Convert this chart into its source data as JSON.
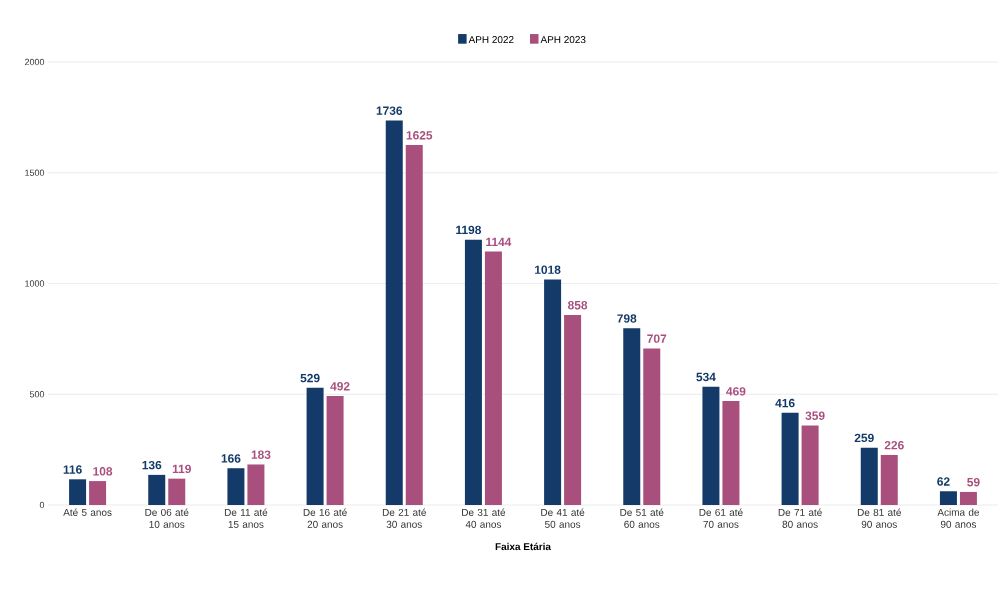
{
  "chart_data": {
    "type": "bar",
    "xlabel": "Faixa Etária",
    "categories": [
      "Até 5 anos",
      "De 06 até 10 anos",
      "De 11 até 15 anos",
      "De 16 até 20 anos",
      "De 21 até 30 anos",
      "De 31 até 40 anos",
      "De 41 até 50 anos",
      "De 51 até 60 anos",
      "De 61 até 70 anos",
      "De 71 até 80 anos",
      "De 81 até 90 anos",
      "Acima de 90 anos"
    ],
    "series": [
      {
        "name": "APH 2022",
        "color": "#133a68",
        "values": [
          116,
          136,
          166,
          529,
          1736,
          1198,
          1018,
          798,
          534,
          416,
          259,
          62
        ]
      },
      {
        "name": "APH 2023",
        "color": "#a84f7e",
        "values": [
          108,
          119,
          183,
          492,
          1625,
          1144,
          858,
          707,
          469,
          359,
          226,
          59
        ]
      }
    ],
    "ylim": [
      0,
      2000
    ],
    "yticks": [
      0,
      500,
      1000,
      1500,
      2000
    ],
    "grid": "y",
    "legend": "top",
    "data_labels": true
  }
}
